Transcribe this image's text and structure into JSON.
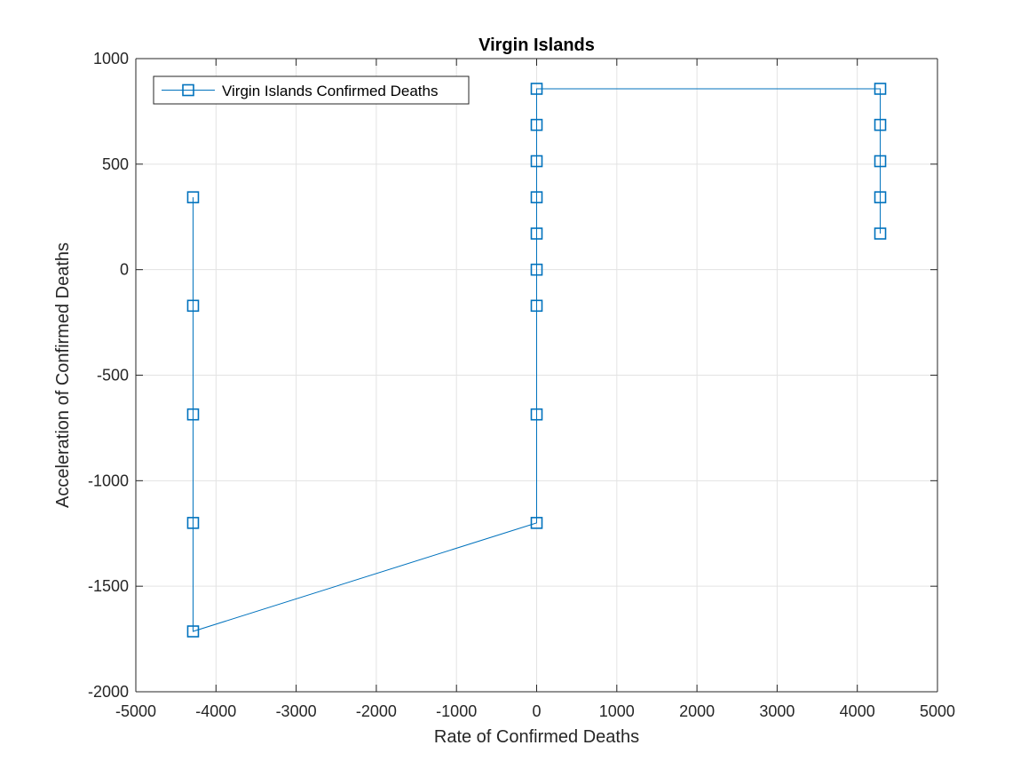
{
  "chart_data": {
    "type": "line",
    "title": "Virgin Islands",
    "xlabel": "Rate of Confirmed Deaths",
    "ylabel": "Acceleration of Confirmed Deaths",
    "xlim": [
      -5000,
      5000
    ],
    "ylim": [
      -2000,
      1000
    ],
    "x_ticks": [
      -5000,
      -4000,
      -3000,
      -2000,
      -1000,
      0,
      1000,
      2000,
      3000,
      4000,
      5000
    ],
    "y_ticks": [
      -2000,
      -1500,
      -1000,
      -500,
      0,
      500,
      1000
    ],
    "x_tick_labels": [
      "-5000",
      "-4000",
      "-3000",
      "-2000",
      "-1000",
      "0",
      "1000",
      "2000",
      "3000",
      "4000",
      "5000"
    ],
    "y_tick_labels": [
      "-2000",
      "-1500",
      "-1000",
      "-500",
      "0",
      "500",
      "1000"
    ],
    "grid": true,
    "legend_position": "top-left",
    "series": [
      {
        "name": "Virgin Islands Confirmed Deaths",
        "color": "#0072BD",
        "marker": "square",
        "x": [
          4286,
          4286,
          4286,
          4286,
          4286,
          0,
          0,
          0,
          0,
          0,
          0,
          0,
          0,
          0,
          -4286,
          -4286,
          -4286,
          -4286,
          -4286
        ],
        "y": [
          171,
          343,
          514,
          686,
          857,
          857,
          686,
          514,
          343,
          171,
          0,
          -171,
          -686,
          -1200,
          -1714,
          -1200,
          -686,
          -171,
          343
        ]
      }
    ]
  }
}
